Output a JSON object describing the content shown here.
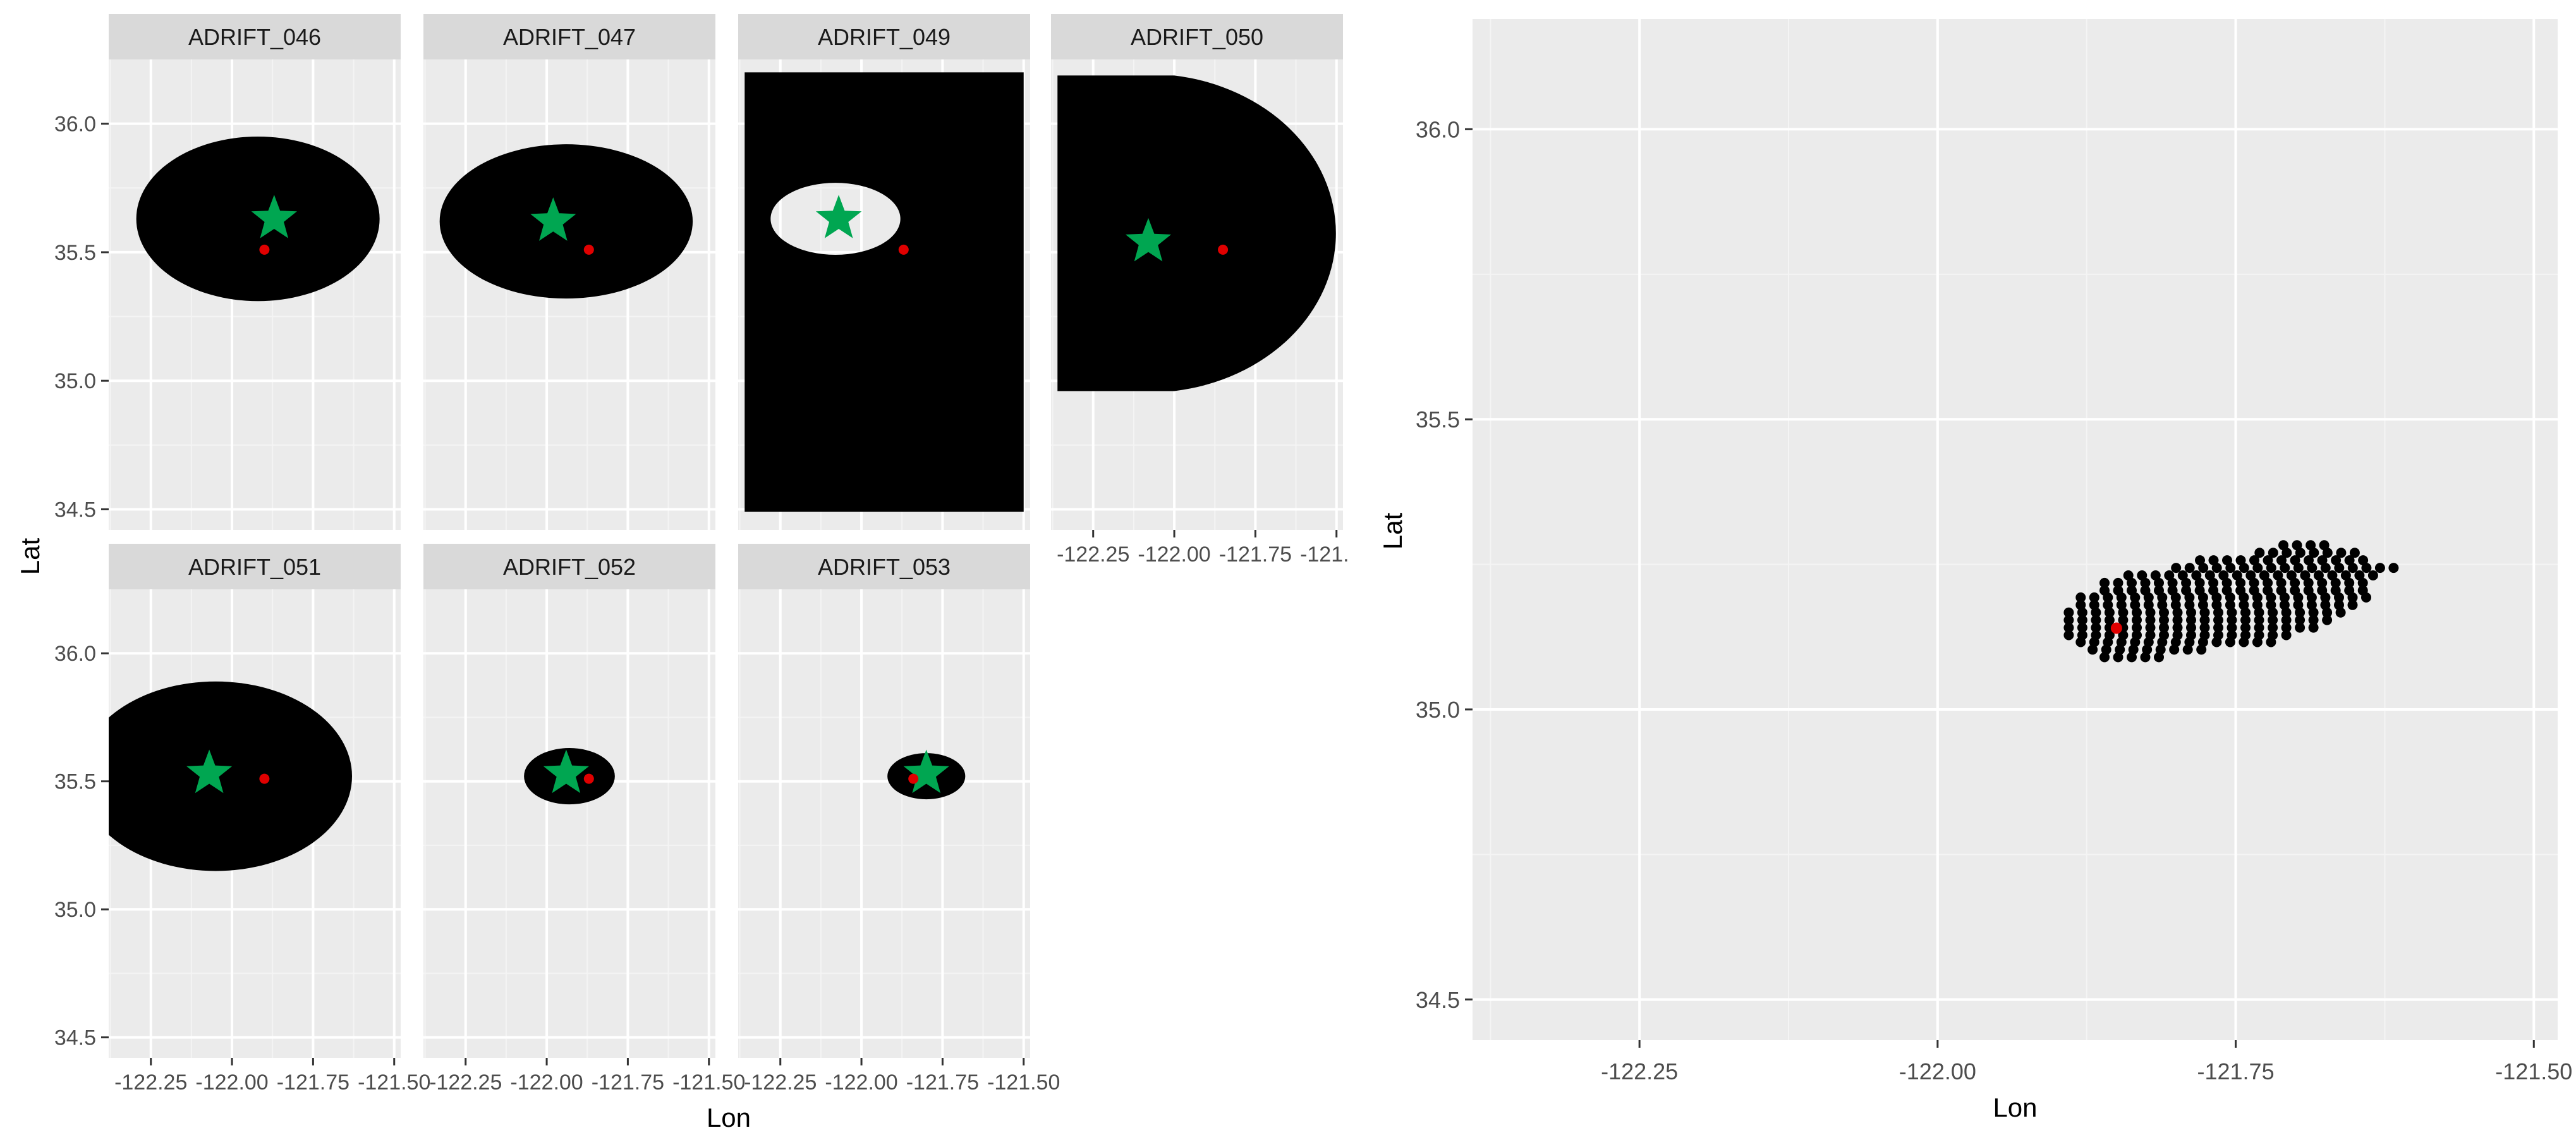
{
  "colors": {
    "panel_bg": "#ebebeb",
    "grid_major": "#ffffff",
    "strip_bg": "#d9d9d9",
    "text": "#4d4d4d",
    "axis_title": "#000000",
    "region": "#000000",
    "star": "#00a651",
    "dot": "#e00000"
  },
  "chart_data": [
    {
      "type": "scatter",
      "subtype": "faceted map",
      "title": "",
      "xlabel": "Lon",
      "ylabel": "Lat",
      "xlim": [
        -122.38,
        -121.48
      ],
      "ylim": [
        34.42,
        36.25
      ],
      "x_ticks": [
        -122.25,
        -122.0,
        -121.75,
        -121.5
      ],
      "x_tick_labels": [
        "-122.25",
        "-122.00",
        "-121.75",
        "-121.50"
      ],
      "y_ticks": [
        34.5,
        35.0,
        35.5,
        36.0
      ],
      "y_tick_labels": [
        "34.5",
        "35.0",
        "35.5",
        "36.0"
      ],
      "grid": true,
      "shown_x_axis_columns": [
        0,
        1,
        2
      ],
      "shown_x_axis_panels": [
        "ADRIFT_050"
      ],
      "panels": [
        {
          "label": "ADRIFT_046",
          "row": 0,
          "col": 0,
          "region": {
            "shape": "ellipse",
            "cx": -121.92,
            "cy": 35.63,
            "rx": 0.375,
            "ry": 0.32
          },
          "star": {
            "lon": -121.87,
            "lat": 35.63
          },
          "dot": {
            "lon": -121.9,
            "lat": 35.51
          }
        },
        {
          "label": "ADRIFT_047",
          "row": 0,
          "col": 1,
          "region": {
            "shape": "ellipse",
            "cx": -121.94,
            "cy": 35.62,
            "rx": 0.39,
            "ry": 0.3
          },
          "star": {
            "lon": -121.98,
            "lat": 35.62
          },
          "dot": {
            "lon": -121.87,
            "lat": 35.51
          }
        },
        {
          "label": "ADRIFT_049",
          "row": 0,
          "col": 2,
          "region": {
            "shape": "rect_with_hole",
            "x0": -122.36,
            "x1": -121.5,
            "y0": 34.49,
            "y1": 36.2,
            "hole_cx": -122.08,
            "hole_cy": 35.63,
            "hole_rx": 0.2,
            "hole_ry": 0.14
          },
          "star": {
            "lon": -122.07,
            "lat": 35.63
          },
          "dot": {
            "lon": -121.87,
            "lat": 35.51
          }
        },
        {
          "label": "ADRIFT_050",
          "row": 0,
          "col": 3,
          "region": {
            "shape": "half_ellipse",
            "x0": -122.36,
            "cx": -122.0,
            "cy": 35.58,
            "rx": 0.58,
            "ry": 0.62
          },
          "star": {
            "lon": -122.08,
            "lat": 35.54
          },
          "dot": {
            "lon": -121.85,
            "lat": 35.51
          }
        },
        {
          "label": "ADRIFT_051",
          "row": 1,
          "col": 0,
          "region": {
            "shape": "ellipse",
            "cx": -122.05,
            "cy": 35.52,
            "rx": 0.42,
            "ry": 0.37
          },
          "star": {
            "lon": -122.07,
            "lat": 35.53
          },
          "dot": {
            "lon": -121.9,
            "lat": 35.51
          }
        },
        {
          "label": "ADRIFT_052",
          "row": 1,
          "col": 1,
          "region": {
            "shape": "ellipse",
            "cx": -121.93,
            "cy": 35.52,
            "rx": 0.14,
            "ry": 0.11
          },
          "star": {
            "lon": -121.94,
            "lat": 35.53
          },
          "dot": {
            "lon": -121.87,
            "lat": 35.51
          }
        },
        {
          "label": "ADRIFT_053",
          "row": 1,
          "col": 2,
          "region": {
            "shape": "ellipse",
            "cx": -121.8,
            "cy": 35.52,
            "rx": 0.12,
            "ry": 0.09
          },
          "star": {
            "lon": -121.8,
            "lat": 35.53
          },
          "dot": {
            "lon": -121.84,
            "lat": 35.51
          }
        }
      ]
    },
    {
      "type": "scatter",
      "title": "",
      "xlabel": "Lon",
      "ylabel": "Lat",
      "xlim": [
        -122.39,
        -121.48
      ],
      "ylim": [
        34.43,
        36.19
      ],
      "x_ticks": [
        -122.25,
        -122.0,
        -121.75,
        -121.5
      ],
      "x_tick_labels": [
        "-122.25",
        "-122.00",
        "-121.75",
        "-121.50"
      ],
      "y_ticks": [
        34.5,
        35.0,
        35.5,
        36.0
      ],
      "y_tick_labels": [
        "34.5",
        "35.0",
        "35.5",
        "36.0"
      ],
      "grid": true,
      "cluster": {
        "lon_step": 0.0114,
        "lat_step": 0.0128,
        "rows": [
          {
            "lat": 35.09,
            "lon_min": -121.86,
            "lon_max": -121.81
          },
          {
            "lat": 35.103,
            "lon_min": -121.87,
            "lon_max": -121.78
          },
          {
            "lat": 35.116,
            "lon_min": -121.88,
            "lon_max": -121.72
          },
          {
            "lat": 35.128,
            "lon_min": -121.89,
            "lon_max": -121.71
          },
          {
            "lat": 35.141,
            "lon_min": -121.89,
            "lon_max": -121.69
          },
          {
            "lat": 35.154,
            "lon_min": -121.89,
            "lon_max": -121.67
          },
          {
            "lat": 35.167,
            "lon_min": -121.89,
            "lon_max": -121.66
          },
          {
            "lat": 35.18,
            "lon_min": -121.88,
            "lon_max": -121.65
          },
          {
            "lat": 35.193,
            "lon_min": -121.88,
            "lon_max": -121.64
          },
          {
            "lat": 35.205,
            "lon_min": -121.86,
            "lon_max": -121.64
          },
          {
            "lat": 35.218,
            "lon_min": -121.86,
            "lon_max": -121.64
          },
          {
            "lat": 35.231,
            "lon_min": -121.84,
            "lon_max": -121.64
          },
          {
            "lat": 35.244,
            "lon_min": -121.8,
            "lon_max": -121.62
          },
          {
            "lat": 35.257,
            "lon_min": -121.78,
            "lon_max": -121.64
          },
          {
            "lat": 35.27,
            "lon_min": -121.73,
            "lon_max": -121.65
          },
          {
            "lat": 35.283,
            "lon_min": -121.71,
            "lon_max": -121.68
          }
        ]
      },
      "dot": {
        "lon": -121.85,
        "lat": 35.14
      }
    }
  ]
}
